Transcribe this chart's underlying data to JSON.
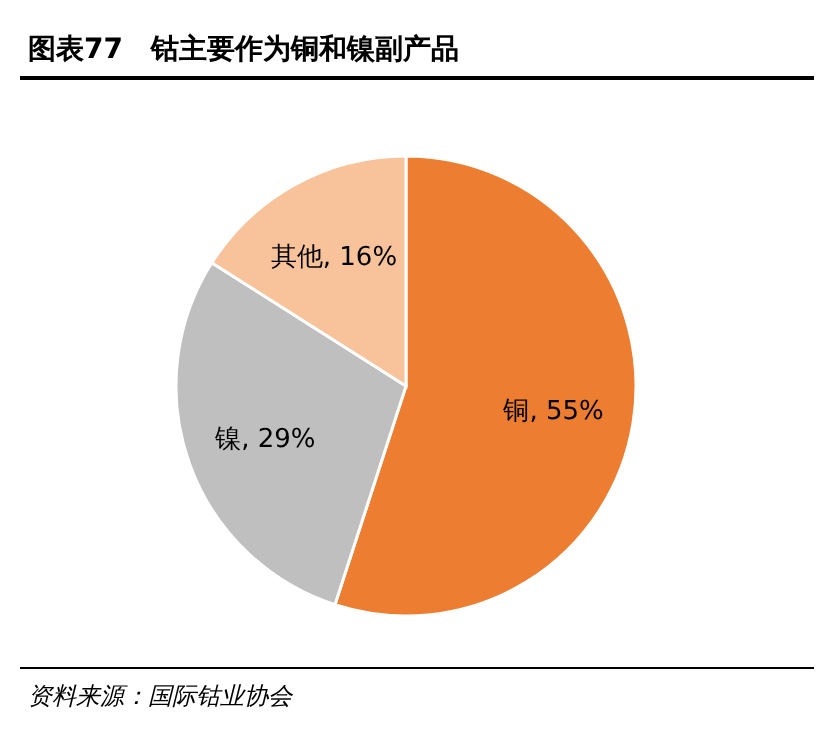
{
  "chart_data": {
    "type": "pie",
    "title": "图表77　钴主要作为铜和镍副产品",
    "categories": [
      "铜",
      "镍",
      "其他"
    ],
    "values": [
      55,
      29,
      16
    ],
    "value_labels": [
      "55%",
      "29%",
      "16%"
    ],
    "colors": [
      "#ed7d31",
      "#bfbfbf",
      "#f8c29a"
    ],
    "annotations": [
      "资料来源：国际钴业协会"
    ]
  }
}
